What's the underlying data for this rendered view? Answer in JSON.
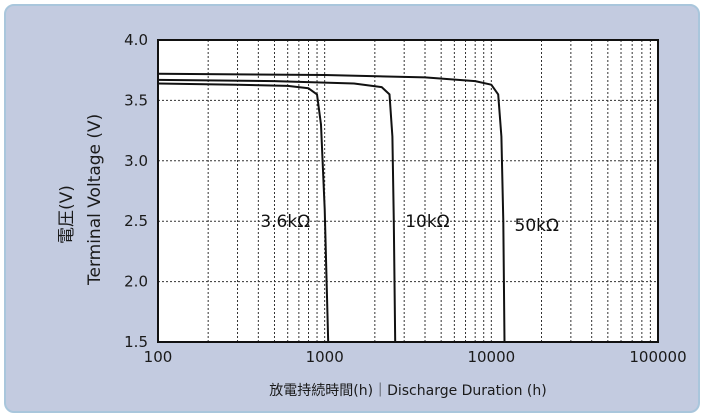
{
  "chart_data": {
    "type": "line",
    "xscale": "log",
    "xlim": [
      100,
      100000
    ],
    "ylim": [
      1.5,
      4.0
    ],
    "x_ticks": [
      "100",
      "1000",
      "10000",
      "100000"
    ],
    "y_ticks": [
      "1.5",
      "2.0",
      "2.5",
      "3.0",
      "3.5",
      "4.0"
    ],
    "ylabel_jp": "電圧(V)",
    "ylabel": "Terminal Voltage (V)",
    "xlabel": "放電持続時間(h)｜Discharge Duration (h)",
    "grid": true,
    "series": [
      {
        "name": "3.6kΩ",
        "points": [
          [
            100,
            3.64
          ],
          [
            300,
            3.63
          ],
          [
            600,
            3.62
          ],
          [
            800,
            3.6
          ],
          [
            900,
            3.55
          ],
          [
            950,
            3.3
          ],
          [
            1000,
            2.6
          ],
          [
            1050,
            1.5
          ]
        ]
      },
      {
        "name": "10kΩ",
        "points": [
          [
            100,
            3.67
          ],
          [
            500,
            3.66
          ],
          [
            1500,
            3.64
          ],
          [
            2200,
            3.61
          ],
          [
            2450,
            3.55
          ],
          [
            2550,
            3.2
          ],
          [
            2600,
            2.5
          ],
          [
            2650,
            1.5
          ]
        ]
      },
      {
        "name": "50kΩ",
        "points": [
          [
            100,
            3.72
          ],
          [
            1000,
            3.71
          ],
          [
            4000,
            3.69
          ],
          [
            8000,
            3.66
          ],
          [
            10000,
            3.63
          ],
          [
            11000,
            3.55
          ],
          [
            11500,
            3.2
          ],
          [
            11800,
            2.5
          ],
          [
            12000,
            1.5
          ]
        ]
      }
    ]
  }
}
